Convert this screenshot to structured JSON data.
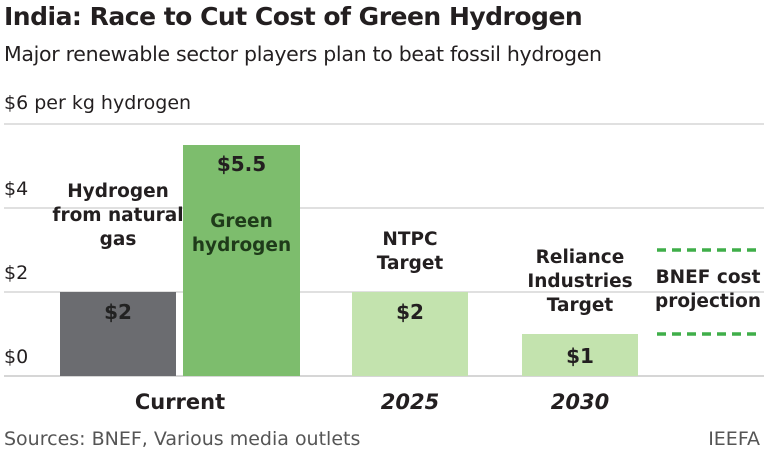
{
  "title": "India: Race to Cut Cost of Green Hydrogen",
  "subtitle": "Major renewable sector players plan to beat fossil hydrogen",
  "source": "Sources: BNEF, Various media outlets",
  "brand": "IEEFA",
  "chart_data": {
    "type": "bar",
    "ylabel": "$6 per kg hydrogen",
    "ylim": [
      0,
      6
    ],
    "yticks": [
      {
        "value": 6,
        "label": "$6 per kg hydrogen"
      },
      {
        "value": 4,
        "label": "$4"
      },
      {
        "value": 2,
        "label": "$2"
      },
      {
        "value": 0,
        "label": "$0"
      }
    ],
    "grid": true,
    "groups": [
      "Current",
      "2025",
      "2030"
    ],
    "bars": [
      {
        "group": "Current",
        "name": "Hydrogen from natural gas",
        "value": 2,
        "value_label": "$2",
        "color": "#6b6c70"
      },
      {
        "group": "Current",
        "name": "Green hydrogen",
        "value": 5.5,
        "value_label": "$5.5",
        "color": "#7dbd6d"
      },
      {
        "group": "2025",
        "name": "NTPC Target",
        "value": 2,
        "value_label": "$2",
        "color": "#c3e3ae"
      },
      {
        "group": "2030",
        "name": "Reliance Industries Target",
        "value": 1,
        "value_label": "$1",
        "color": "#c3e3ae"
      }
    ],
    "range": {
      "group": "2030",
      "name": "BNEF cost projection",
      "low": 1,
      "high": 3,
      "color": "#3fae49"
    }
  }
}
